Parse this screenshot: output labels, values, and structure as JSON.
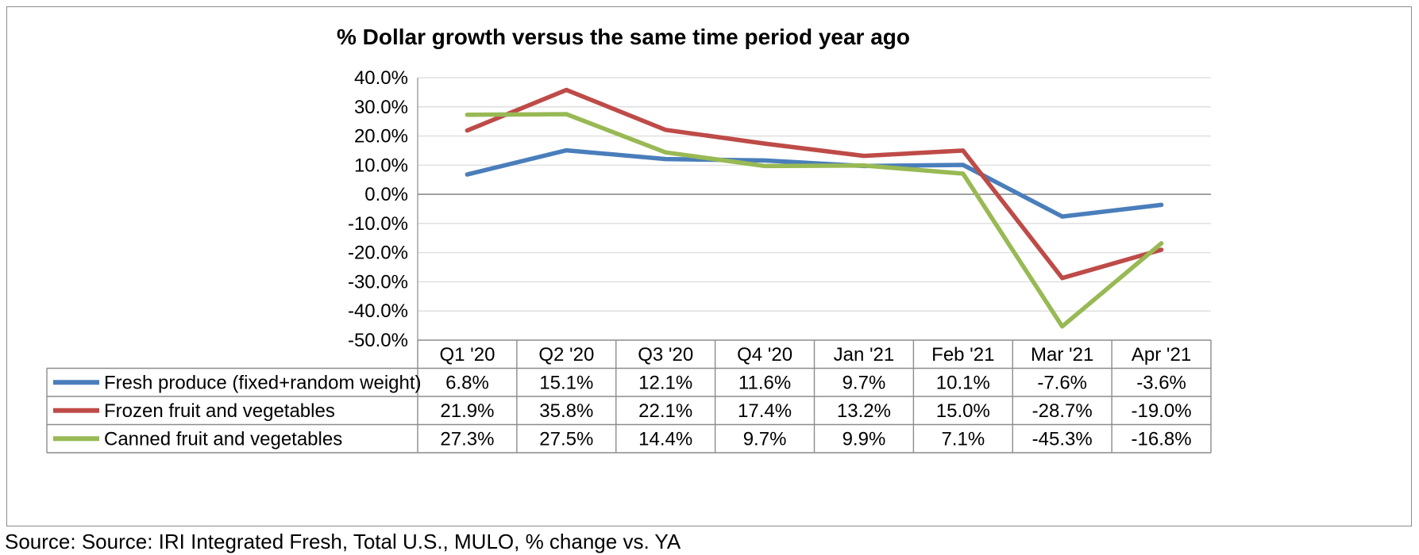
{
  "chart_data": {
    "type": "line",
    "title": "% Dollar growth versus the same time period year ago",
    "categories": [
      "Q1 '20",
      "Q2 '20",
      "Q3 '20",
      "Q4 '20",
      "Jan '21",
      "Feb '21",
      "Mar '21",
      "Apr '21"
    ],
    "ylim": [
      -50,
      40
    ],
    "ytick_step": 10,
    "ytick_labels": [
      "40.0%",
      "30.0%",
      "20.0%",
      "10.0%",
      "0.0%",
      "-10.0%",
      "-20.0%",
      "-30.0%",
      "-40.0%",
      "-50.0%"
    ],
    "grid": true,
    "legend": "data-table-below",
    "series": [
      {
        "name": "Fresh produce (fixed+random weight)",
        "color": "#4a7ebb",
        "values": [
          6.8,
          15.1,
          12.1,
          11.6,
          9.7,
          10.1,
          -7.6,
          -3.6
        ],
        "labels": [
          "6.8%",
          "15.1%",
          "12.1%",
          "11.6%",
          "9.7%",
          "10.1%",
          "-7.6%",
          "-3.6%"
        ]
      },
      {
        "name": "Frozen fruit and vegetables",
        "color": "#be4b48",
        "values": [
          21.9,
          35.8,
          22.1,
          17.4,
          13.2,
          15.0,
          -28.7,
          -19.0
        ],
        "labels": [
          "21.9%",
          "35.8%",
          "22.1%",
          "17.4%",
          "13.2%",
          "15.0%",
          "-28.7%",
          "-19.0%"
        ]
      },
      {
        "name": "Canned fruit and vegetables",
        "color": "#98b954",
        "values": [
          27.3,
          27.5,
          14.4,
          9.7,
          9.9,
          7.1,
          -45.3,
          -16.8
        ],
        "labels": [
          "27.3%",
          "27.5%",
          "14.4%",
          "9.7%",
          "9.9%",
          "7.1%",
          "-45.3%",
          "-16.8%"
        ]
      }
    ],
    "source": "Source: Source: IRI Integrated Fresh, Total U.S., MULO, % change vs. YA"
  }
}
